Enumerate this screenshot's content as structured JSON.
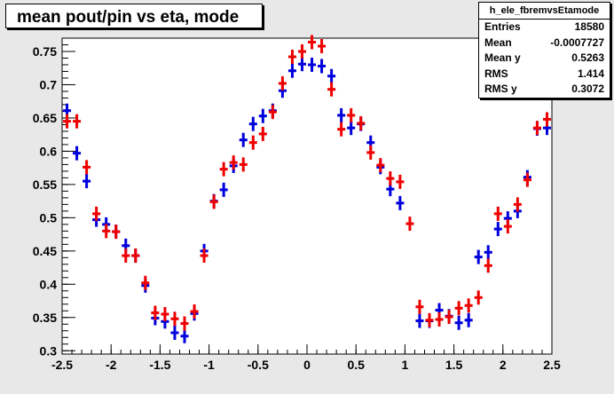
{
  "title": "mean pout/pin vs eta, mode",
  "stats": {
    "name": "h_ele_fbremvsEtamode",
    "rows": [
      {
        "label": "Entries",
        "value": "18580"
      },
      {
        "label": "Mean",
        "value": "-0.0007727"
      },
      {
        "label": "Mean y",
        "value": "0.5263"
      },
      {
        "label": "RMS",
        "value": "1.414"
      },
      {
        "label": "RMS y",
        "value": "0.3072"
      }
    ]
  },
  "chart_data": {
    "type": "scatter",
    "title": "mean pout/pin vs eta, mode",
    "xlim": [
      -2.5,
      2.5
    ],
    "ylim": [
      0.295,
      0.77
    ],
    "x_ticks": [
      "-2.5",
      "-2",
      "-1.5",
      "-1",
      "-0.5",
      "0",
      "0.5",
      "1",
      "1.5",
      "2",
      "2.5"
    ],
    "y_ticks": [
      "0.3",
      "0.35",
      "0.4",
      "0.45",
      "0.5",
      "0.55",
      "0.6",
      "0.65",
      "0.7",
      "0.75"
    ],
    "x_bin_width": 0.1,
    "grid": false,
    "series": [
      {
        "color": "#0000dd",
        "points": [
          [
            -2.45,
            0.661
          ],
          [
            -2.35,
            0.597
          ],
          [
            -2.25,
            0.555
          ],
          [
            -2.15,
            0.497
          ],
          [
            -2.05,
            0.49
          ],
          [
            -1.95,
            0.479
          ],
          [
            -1.85,
            0.458
          ],
          [
            -1.75,
            0.443
          ],
          [
            -1.65,
            0.398
          ],
          [
            -1.55,
            0.349
          ],
          [
            -1.45,
            0.344
          ],
          [
            -1.35,
            0.327
          ],
          [
            -1.25,
            0.322
          ],
          [
            -1.15,
            0.356
          ],
          [
            -1.05,
            0.45
          ],
          [
            -0.95,
            0.525
          ],
          [
            -0.85,
            0.542
          ],
          [
            -0.75,
            0.578
          ],
          [
            -0.65,
            0.617
          ],
          [
            -0.55,
            0.641
          ],
          [
            -0.45,
            0.653
          ],
          [
            -0.35,
            0.661
          ],
          [
            -0.25,
            0.691
          ],
          [
            -0.15,
            0.721
          ],
          [
            -0.05,
            0.731
          ],
          [
            0.05,
            0.73
          ],
          [
            0.15,
            0.728
          ],
          [
            0.25,
            0.713
          ],
          [
            0.35,
            0.654
          ],
          [
            0.45,
            0.635
          ],
          [
            0.55,
            0.641
          ],
          [
            0.65,
            0.613
          ],
          [
            0.75,
            0.576
          ],
          [
            0.85,
            0.543
          ],
          [
            0.95,
            0.522
          ],
          [
            1.15,
            0.345
          ],
          [
            1.25,
            0.345
          ],
          [
            1.35,
            0.361
          ],
          [
            1.45,
            0.352
          ],
          [
            1.55,
            0.342
          ],
          [
            1.65,
            0.346
          ],
          [
            1.75,
            0.441
          ],
          [
            1.85,
            0.448
          ],
          [
            1.95,
            0.483
          ],
          [
            2.05,
            0.499
          ],
          [
            2.15,
            0.51
          ],
          [
            2.25,
            0.561
          ],
          [
            2.35,
            0.634
          ],
          [
            2.45,
            0.635
          ]
        ]
      },
      {
        "color": "#ee0000",
        "points": [
          [
            -2.45,
            0.645
          ],
          [
            -2.35,
            0.645
          ],
          [
            -2.25,
            0.576
          ],
          [
            -2.15,
            0.506
          ],
          [
            -2.05,
            0.48
          ],
          [
            -1.95,
            0.479
          ],
          [
            -1.85,
            0.443
          ],
          [
            -1.75,
            0.443
          ],
          [
            -1.65,
            0.402
          ],
          [
            -1.55,
            0.357
          ],
          [
            -1.45,
            0.355
          ],
          [
            -1.35,
            0.348
          ],
          [
            -1.25,
            0.341
          ],
          [
            -1.15,
            0.359
          ],
          [
            -1.05,
            0.443
          ],
          [
            -0.95,
            0.524
          ],
          [
            -0.85,
            0.573
          ],
          [
            -0.75,
            0.583
          ],
          [
            -0.65,
            0.58
          ],
          [
            -0.55,
            0.613
          ],
          [
            -0.45,
            0.626
          ],
          [
            -0.35,
            0.659
          ],
          [
            -0.25,
            0.702
          ],
          [
            -0.15,
            0.742
          ],
          [
            -0.05,
            0.75
          ],
          [
            0.05,
            0.764
          ],
          [
            0.15,
            0.758
          ],
          [
            0.25,
            0.693
          ],
          [
            0.35,
            0.633
          ],
          [
            0.45,
            0.654
          ],
          [
            0.55,
            0.642
          ],
          [
            0.65,
            0.598
          ],
          [
            0.75,
            0.579
          ],
          [
            0.85,
            0.559
          ],
          [
            0.95,
            0.554
          ],
          [
            1.05,
            0.491
          ],
          [
            1.15,
            0.366
          ],
          [
            1.25,
            0.346
          ],
          [
            1.35,
            0.347
          ],
          [
            1.45,
            0.351
          ],
          [
            1.55,
            0.364
          ],
          [
            1.65,
            0.368
          ],
          [
            1.75,
            0.38
          ],
          [
            1.85,
            0.428
          ],
          [
            1.95,
            0.506
          ],
          [
            2.05,
            0.487
          ],
          [
            2.15,
            0.52
          ],
          [
            2.25,
            0.557
          ],
          [
            2.35,
            0.635
          ],
          [
            2.45,
            0.648
          ]
        ]
      }
    ]
  }
}
